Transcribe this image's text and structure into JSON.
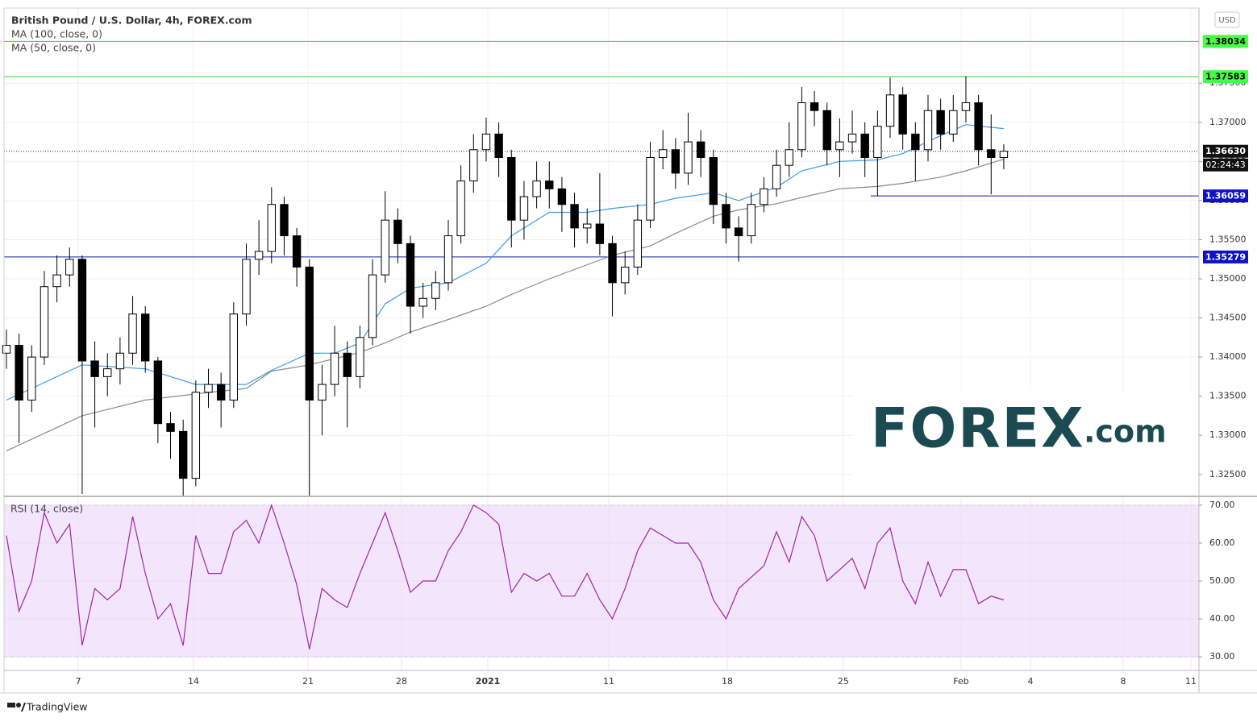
{
  "chart_data": [
    {
      "type": "candlestick",
      "title": "British Pound / U.S. Dollar, 4h, FOREX.com",
      "currency": "USD",
      "open": [
        1.3405,
        1.3415,
        1.3345,
        1.34,
        1.349,
        1.3505,
        1.3525,
        1.3395,
        1.3375,
        1.3385,
        1.3405,
        1.3455,
        1.3395,
        1.3315,
        1.3305,
        1.3245,
        1.3355,
        1.3365,
        1.3345,
        1.3455,
        1.3525,
        1.3535,
        1.3595,
        1.3555,
        1.3515,
        1.3345,
        1.3365,
        1.3405,
        1.3375,
        1.3425,
        1.3505,
        1.3575,
        1.3545,
        1.3465,
        1.3475,
        1.3495,
        1.3555,
        1.3625,
        1.3665,
        1.3685,
        1.3655,
        1.3575,
        1.3605,
        1.3625,
        1.3615,
        1.3595,
        1.3565,
        1.357,
        1.3545,
        1.3495,
        1.3515,
        1.3575,
        1.3655,
        1.3665,
        1.3635,
        1.3675,
        1.3655,
        1.3595,
        1.3565,
        1.3555,
        1.3595,
        1.3615,
        1.3645,
        1.3665,
        1.3725,
        1.3715,
        1.3665,
        1.3675,
        1.3685,
        1.3655,
        1.3695,
        1.3735,
        1.3685,
        1.3665,
        1.3715,
        1.3685,
        1.3715,
        1.3725,
        1.3665,
        1.3655
      ],
      "high": [
        1.3435,
        1.343,
        1.3415,
        1.351,
        1.353,
        1.354,
        1.353,
        1.342,
        1.3405,
        1.3425,
        1.3478,
        1.3465,
        1.34,
        1.333,
        1.332,
        1.337,
        1.3385,
        1.338,
        1.347,
        1.3545,
        1.3575,
        1.3617,
        1.3605,
        1.3565,
        1.3525,
        1.339,
        1.344,
        1.342,
        1.344,
        1.3525,
        1.3612,
        1.359,
        1.3555,
        1.3495,
        1.351,
        1.3575,
        1.3645,
        1.3685,
        1.3706,
        1.37,
        1.3665,
        1.3625,
        1.365,
        1.365,
        1.363,
        1.361,
        1.359,
        1.3635,
        1.3555,
        1.3535,
        1.3595,
        1.3675,
        1.369,
        1.368,
        1.3712,
        1.369,
        1.3665,
        1.361,
        1.358,
        1.361,
        1.363,
        1.3665,
        1.37,
        1.3745,
        1.374,
        1.3725,
        1.3705,
        1.3715,
        1.37,
        1.3715,
        1.3757,
        1.3745,
        1.37,
        1.3735,
        1.373,
        1.3735,
        1.3759,
        1.3735,
        1.371,
        1.3672
      ],
      "low": [
        1.3385,
        1.329,
        1.333,
        1.339,
        1.347,
        1.349,
        1.3225,
        1.331,
        1.335,
        1.3365,
        1.339,
        1.338,
        1.329,
        1.327,
        1.3222,
        1.3235,
        1.3335,
        1.331,
        1.3335,
        1.344,
        1.3505,
        1.352,
        1.353,
        1.349,
        1.3222,
        1.33,
        1.335,
        1.331,
        1.336,
        1.3415,
        1.3495,
        1.352,
        1.343,
        1.345,
        1.346,
        1.3485,
        1.3545,
        1.361,
        1.365,
        1.363,
        1.354,
        1.355,
        1.359,
        1.359,
        1.356,
        1.354,
        1.3545,
        1.353,
        1.3452,
        1.348,
        1.3505,
        1.3565,
        1.364,
        1.3615,
        1.362,
        1.363,
        1.357,
        1.3545,
        1.3522,
        1.3545,
        1.3585,
        1.3605,
        1.363,
        1.3655,
        1.3695,
        1.3645,
        1.363,
        1.366,
        1.363,
        1.3606,
        1.368,
        1.3665,
        1.3625,
        1.365,
        1.3665,
        1.3675,
        1.37,
        1.3645,
        1.3608,
        1.364
      ],
      "close": [
        1.3415,
        1.3345,
        1.34,
        1.349,
        1.3505,
        1.3525,
        1.3395,
        1.3375,
        1.3385,
        1.3405,
        1.3455,
        1.3395,
        1.3315,
        1.3305,
        1.3245,
        1.3355,
        1.3365,
        1.3345,
        1.3455,
        1.3525,
        1.3535,
        1.3595,
        1.3555,
        1.3515,
        1.3345,
        1.3365,
        1.3405,
        1.3375,
        1.3425,
        1.3505,
        1.3575,
        1.3545,
        1.3465,
        1.3475,
        1.3495,
        1.3555,
        1.3625,
        1.3665,
        1.3685,
        1.3655,
        1.3575,
        1.3605,
        1.3625,
        1.3615,
        1.3595,
        1.3565,
        1.357,
        1.3545,
        1.3495,
        1.3515,
        1.3575,
        1.3655,
        1.3665,
        1.3635,
        1.3675,
        1.3655,
        1.3595,
        1.3565,
        1.3555,
        1.3595,
        1.3615,
        1.3645,
        1.3665,
        1.3725,
        1.3715,
        1.3665,
        1.3675,
        1.3685,
        1.3655,
        1.3695,
        1.3735,
        1.3685,
        1.3665,
        1.3715,
        1.3685,
        1.3715,
        1.3725,
        1.3665,
        1.3655,
        1.3663
      ],
      "up_color": "#ffffff",
      "down_color": "#000000",
      "wick_color": "#000000",
      "series": [
        {
          "name": "MA (100, close, 0)",
          "color": "#8a8a8a",
          "x": [
            0,
            6,
            11,
            15,
            19,
            21,
            24,
            26,
            28,
            30,
            32,
            35,
            38,
            40,
            43,
            46,
            48,
            51,
            53,
            56,
            58,
            61,
            63,
            66,
            69,
            71,
            74,
            76,
            79
          ],
          "values": [
            1.328,
            1.3325,
            1.3345,
            1.3353,
            1.336,
            1.3382,
            1.339,
            1.3398,
            1.3406,
            1.3418,
            1.3432,
            1.3448,
            1.3465,
            1.348,
            1.35,
            1.3518,
            1.353,
            1.3542,
            1.3558,
            1.358,
            1.3588,
            1.3596,
            1.3604,
            1.3615,
            1.3618,
            1.3622,
            1.363,
            1.3638,
            1.3653
          ]
        },
        {
          "name": "MA (50, close, 0)",
          "color": "#3d9be9",
          "x": [
            0,
            6,
            11,
            15,
            19,
            21,
            24,
            26,
            28,
            30,
            32,
            35,
            38,
            40,
            43,
            46,
            48,
            51,
            53,
            56,
            58,
            61,
            63,
            66,
            69,
            71,
            74,
            76,
            79
          ],
          "values": [
            1.3345,
            1.339,
            1.3385,
            1.3365,
            1.3365,
            1.3383,
            1.3405,
            1.3405,
            1.3418,
            1.3468,
            1.3488,
            1.3495,
            1.352,
            1.3555,
            1.3585,
            1.3585,
            1.359,
            1.3595,
            1.3603,
            1.361,
            1.36,
            1.3617,
            1.3638,
            1.365,
            1.3652,
            1.366,
            1.3683,
            1.3697,
            1.3692
          ]
        }
      ],
      "levels": [
        {
          "value": 1.38034,
          "label": "1.38034",
          "color": "#22dd22",
          "label_color": "#44ff44",
          "text_color": "#000000"
        },
        {
          "value": 1.37583,
          "label": "1.37583",
          "color": "#22dd22",
          "label_color": "#44ff44",
          "text_color": "#000000"
        },
        {
          "value": 1.36059,
          "label": "1.36059",
          "color": "#1a1aa8",
          "label_color": "#1010c8",
          "text_color": "#ffffff",
          "x_start": 68.45
        },
        {
          "value": 1.35279,
          "label": "1.35279",
          "color": "#1a1aa8",
          "label_color": "#1010c8",
          "text_color": "#ffffff"
        }
      ],
      "last": {
        "value": 1.3663,
        "label": "1.36630",
        "countdown": "02:24:43"
      },
      "xlim": [
        -0.19,
        94.46
      ],
      "xticks": [
        {
          "value": 5.69,
          "label": "7"
        },
        {
          "value": 14.82,
          "label": "14"
        },
        {
          "value": 23.89,
          "label": "21"
        },
        {
          "value": 31.3,
          "label": "28"
        },
        {
          "value": 38.13,
          "label": "2021"
        },
        {
          "value": 47.71,
          "label": "11"
        },
        {
          "value": 57.1,
          "label": "18"
        },
        {
          "value": 66.29,
          "label": "25"
        },
        {
          "value": 75.62,
          "label": "Feb"
        },
        {
          "value": 81.11,
          "label": "4"
        },
        {
          "value": 88.46,
          "label": "8"
        },
        {
          "value": 93.82,
          "label": "11"
        }
      ],
      "ylim": [
        1.3223,
        1.3846
      ],
      "yticks": [
        {
          "value": 1.325,
          "label": "1.32500"
        },
        {
          "value": 1.33,
          "label": "1.33000"
        },
        {
          "value": 1.335,
          "label": "1.33500"
        },
        {
          "value": 1.34,
          "label": "1.34000"
        },
        {
          "value": 1.345,
          "label": "1.34500"
        },
        {
          "value": 1.35,
          "label": "1.35000"
        },
        {
          "value": 1.355,
          "label": "1.35500"
        },
        {
          "value": 1.36,
          "label": "1.36000"
        },
        {
          "value": 1.365,
          "label": "1.36500"
        },
        {
          "value": 1.37,
          "label": "1.37000"
        },
        {
          "value": 1.375,
          "label": "1.37500"
        }
      ],
      "grid": true
    },
    {
      "type": "line",
      "title": "RSI (14, close)",
      "color": "#9c27b0",
      "band": [
        30,
        70
      ],
      "band_color": "#f3e5fb",
      "values": [
        62,
        42,
        50,
        68,
        60,
        65,
        33,
        48,
        45,
        48,
        67,
        52,
        40,
        44,
        33,
        62,
        52,
        52,
        63,
        66,
        60,
        70,
        60,
        49,
        32,
        48,
        45,
        43,
        52,
        60,
        68,
        58,
        47,
        50,
        50,
        58,
        63,
        70,
        68,
        65,
        47,
        52,
        50,
        52,
        46,
        46,
        52,
        45,
        40,
        48,
        58,
        64,
        62,
        60,
        60,
        55,
        45,
        40,
        48,
        51,
        54,
        63,
        55,
        67,
        62,
        50,
        53,
        56,
        48,
        60,
        64,
        50,
        44,
        55,
        46,
        53,
        53,
        44,
        46,
        45
      ],
      "ylim": [
        26.4,
        71.9
      ],
      "yticks": [
        {
          "value": 30,
          "label": "30.00"
        },
        {
          "value": 40,
          "label": "40.00"
        },
        {
          "value": 50,
          "label": "50.00"
        },
        {
          "value": 60,
          "label": "60.00"
        },
        {
          "value": 70,
          "label": "70.00"
        }
      ]
    }
  ],
  "watermark": {
    "brand": "FOREX",
    "suffix": ".com"
  },
  "footer": "TradingView"
}
